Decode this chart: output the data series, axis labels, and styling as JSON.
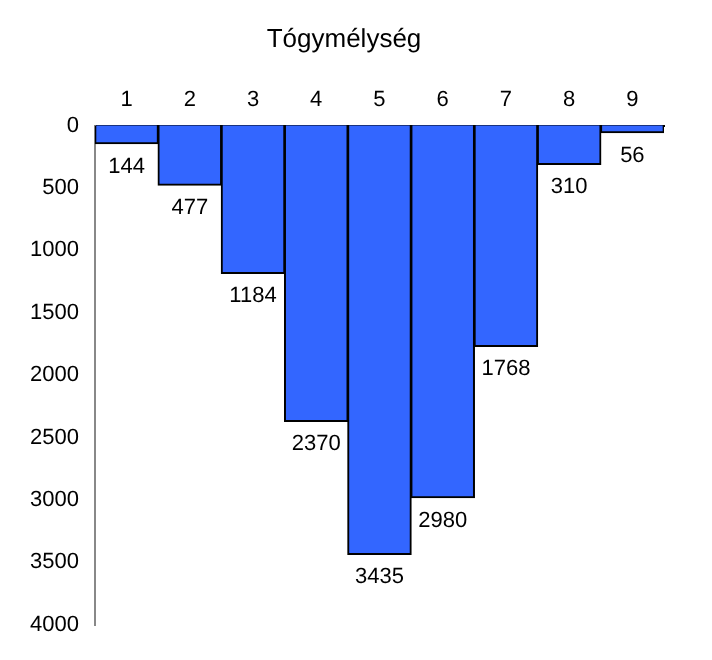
{
  "chart_data": {
    "type": "bar",
    "title": "Tógymélység",
    "categories": [
      "1",
      "2",
      "3",
      "4",
      "5",
      "6",
      "7",
      "8",
      "9"
    ],
    "values": [
      144,
      477,
      1184,
      2370,
      3435,
      2980,
      1768,
      310,
      56
    ],
    "color": "#3366ff",
    "ylim": [
      4000,
      0
    ],
    "yticks": [
      0,
      500,
      1000,
      1500,
      2000,
      2500,
      3000,
      3500,
      4000
    ],
    "grid": false,
    "legend": false,
    "data_labels": true
  }
}
